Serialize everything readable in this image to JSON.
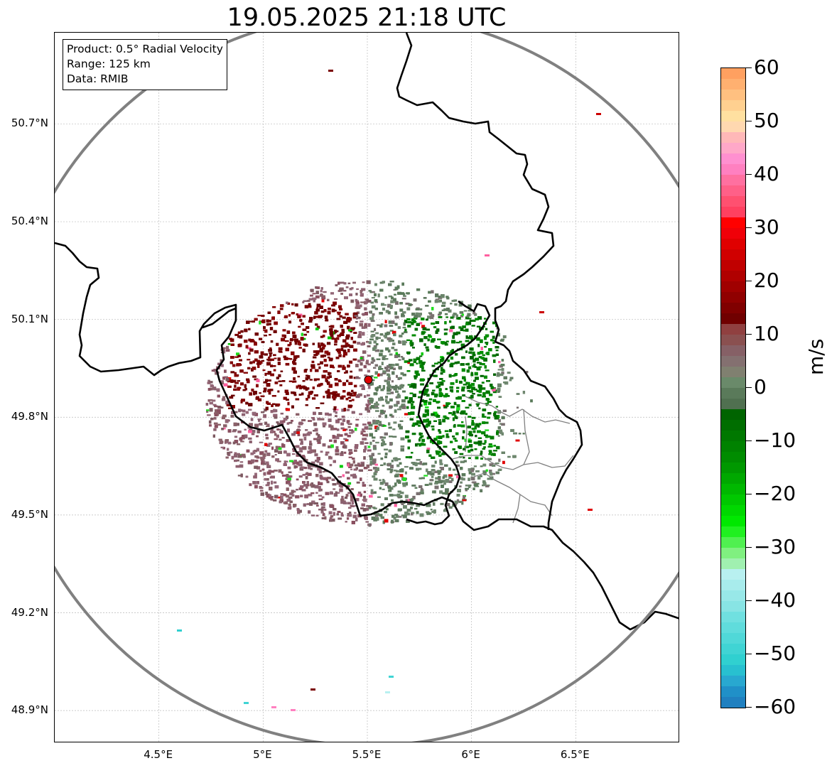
{
  "title": "19.05.2025 21:18 UTC",
  "info": {
    "product": "Product: 0.5° Radial Velocity",
    "range": "Range: 125 km",
    "source": "Data: RMIB"
  },
  "map": {
    "lon_range": [
      4.0,
      7.0
    ],
    "lat_range": [
      48.8,
      50.98
    ],
    "radar_site": {
      "lon": 5.505,
      "lat": 49.915
    },
    "range_ring_color": "#808080",
    "border_color": "#000000",
    "subregion_color": "#808080",
    "grid": true,
    "x_ticks": [
      {
        "value": 4.5,
        "label": "4.5°E"
      },
      {
        "value": 5.0,
        "label": "5°E"
      },
      {
        "value": 5.5,
        "label": "5.5°E"
      },
      {
        "value": 6.0,
        "label": "6°E"
      },
      {
        "value": 6.5,
        "label": "6.5°E"
      }
    ],
    "y_ticks": [
      {
        "value": 50.7,
        "label": "50.7°N"
      },
      {
        "value": 50.4,
        "label": "50.4°N"
      },
      {
        "value": 50.1,
        "label": "50.1°N"
      },
      {
        "value": 49.8,
        "label": "49.8°N"
      },
      {
        "value": 49.5,
        "label": "49.5°N"
      },
      {
        "value": 49.2,
        "label": "49.2°N"
      },
      {
        "value": 48.9,
        "label": "48.9°N"
      }
    ]
  },
  "colorbar": {
    "label": "m/s",
    "range": [
      -60,
      60
    ],
    "ticks": [
      {
        "value": 60,
        "label": "60"
      },
      {
        "value": 50,
        "label": "50"
      },
      {
        "value": 40,
        "label": "40"
      },
      {
        "value": 30,
        "label": "30"
      },
      {
        "value": 20,
        "label": "20"
      },
      {
        "value": 10,
        "label": "10"
      },
      {
        "value": 0,
        "label": "0"
      },
      {
        "value": -10,
        "label": "−10"
      },
      {
        "value": -20,
        "label": "−20"
      },
      {
        "value": -30,
        "label": "−30"
      },
      {
        "value": -40,
        "label": "−40"
      },
      {
        "value": -50,
        "label": "−50"
      },
      {
        "value": -60,
        "label": "−60"
      }
    ],
    "colors_top_to_bottom": [
      "#ffa060",
      "#ffb070",
      "#ffc080",
      "#ffd090",
      "#ffe0a0",
      "#ffd8b0",
      "#ffb8b8",
      "#ffa8c8",
      "#ff90d0",
      "#ff80c0",
      "#ff70a0",
      "#ff6088",
      "#ff5070",
      "#ff4060",
      "#ff0000",
      "#f00008",
      "#e00000",
      "#d00000",
      "#c00000",
      "#b00000",
      "#a00000",
      "#900000",
      "#800000",
      "#700000",
      "#904040",
      "#8a5050",
      "#866066",
      "#847070",
      "#808070",
      "#6a8a6a",
      "#5a7a5a",
      "#507050",
      "#006400",
      "#006e00",
      "#007800",
      "#008200",
      "#008c00",
      "#009800",
      "#00a800",
      "#00b800",
      "#00c800",
      "#00d800",
      "#00e800",
      "#20f020",
      "#50f050",
      "#80f080",
      "#a0f0b0",
      "#b8f0f0",
      "#a8ecec",
      "#98e8e8",
      "#88e4e4",
      "#70e0e0",
      "#60dcdc",
      "#50d8d8",
      "#40d4d4",
      "#30d0d0",
      "#28c0d0",
      "#28a8d0",
      "#2090c8",
      "#2080c0"
    ]
  }
}
